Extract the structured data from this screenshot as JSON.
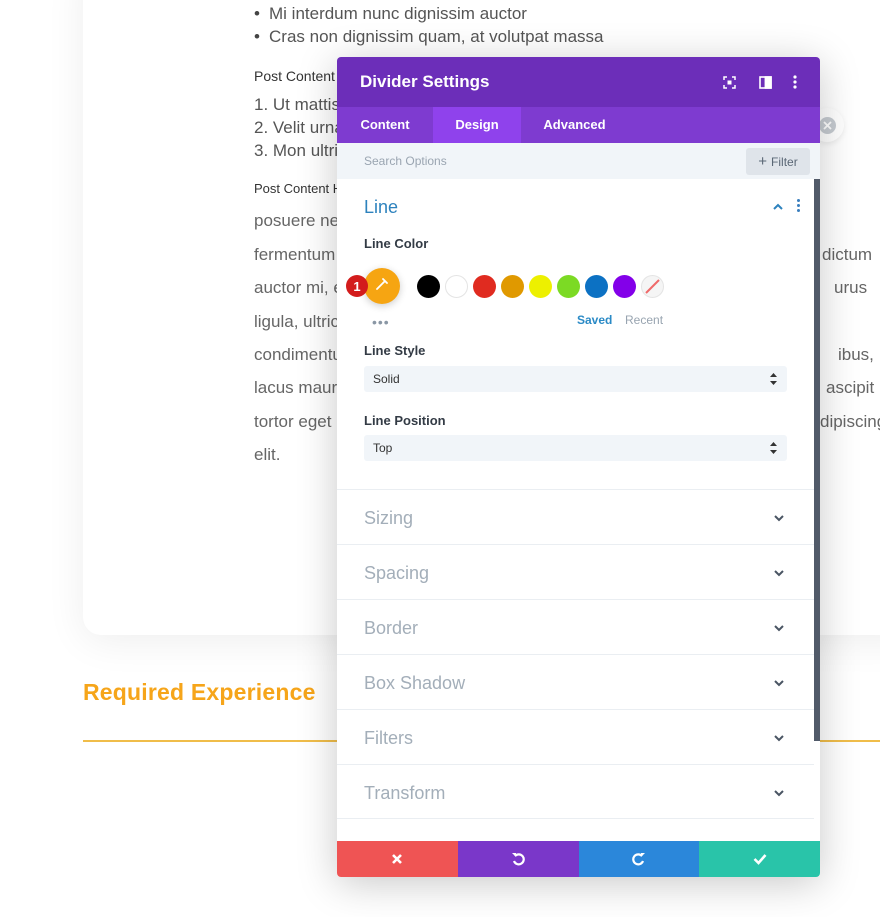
{
  "page": {
    "bullets": [
      "Mi interdum nunc dignissim auctor",
      "Cras non dignissim quam, at volutpat massa"
    ],
    "heading_1": "Post Content",
    "ordered": [
      "1. Ut mattis",
      "2. Velit urna",
      "3. Mon ultric"
    ],
    "heading_2": "Post Content H",
    "para_left": [
      "posuere ne",
      "fermentum",
      "auctor mi, e",
      "ligula, ultric",
      "condimentu",
      "lacus maur",
      "tortor eget",
      "elit."
    ],
    "para_right": [
      "",
      "dictum",
      "urus",
      "",
      "ibus,",
      "ascipit",
      "dipiscing",
      ""
    ],
    "required_title": "Required Experience"
  },
  "modal": {
    "title": "Divider Settings",
    "tabs": [
      "Content",
      "Design",
      "Advanced"
    ],
    "active_tab": "Design",
    "search_placeholder": "Search Options",
    "filter_label": "Filter",
    "open_section": "Line",
    "line_color_label": "Line Color",
    "picker_color": "#f6a512",
    "step_badge": "1",
    "swatches": [
      "#000000",
      "#ffffff",
      "#e02b20",
      "#e09900",
      "#edf000",
      "#7cda24",
      "#0c71c3",
      "#8300e9",
      "none"
    ],
    "saved_label": "Saved",
    "recent_label": "Recent",
    "line_style_label": "Line Style",
    "line_style_value": "Solid",
    "line_position_label": "Line Position",
    "line_position_value": "Top",
    "sections": [
      "Sizing",
      "Spacing",
      "Border",
      "Box Shadow",
      "Filters",
      "Transform"
    ],
    "footer_colors": [
      "#ef5454",
      "#7a37c9",
      "#2b87da",
      "#29c4a9"
    ]
  }
}
